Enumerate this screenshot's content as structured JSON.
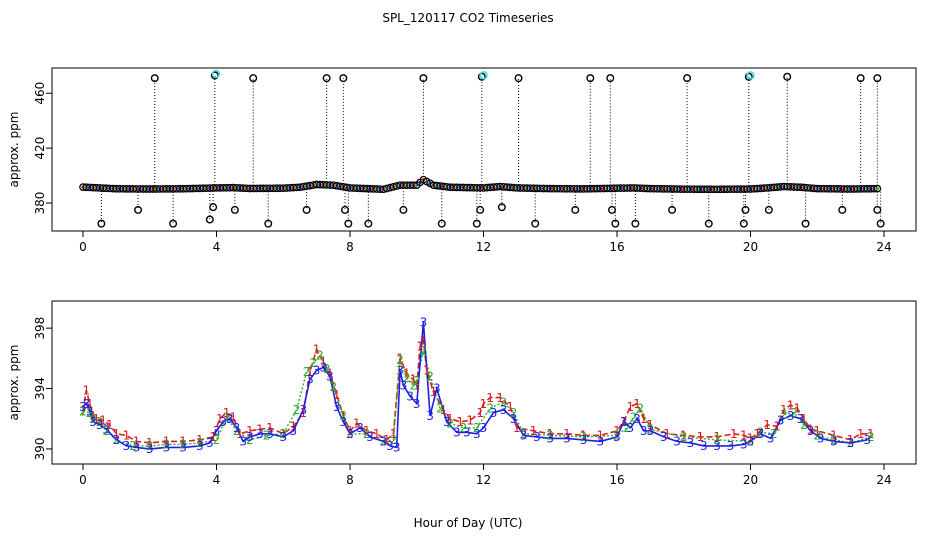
{
  "title": "SPL_120117  CO2 Timeseries",
  "xlabel": "Hour of Day (UTC)",
  "colors": {
    "series1": "#e01b1b",
    "series2": "#22b022",
    "series3": "#1e1ee6",
    "flag": "#40d8e0",
    "line1": "#e01b1b",
    "line3": "#1e1ee6"
  },
  "chart_data": [
    {
      "type": "scatter",
      "xlim": [
        0,
        24
      ],
      "ylim": [
        364,
        474
      ],
      "ylabel": "approx. ppm",
      "xticks": [
        0,
        4,
        8,
        12,
        16,
        20,
        24
      ],
      "yticks": [
        380,
        420,
        460
      ],
      "grid": false,
      "baseline": [
        [
          0.0,
          391.6
        ],
        [
          0.5,
          391.0
        ],
        [
          1.0,
          390.4
        ],
        [
          2.0,
          390.2
        ],
        [
          3.0,
          390.4
        ],
        [
          4.0,
          391.0
        ],
        [
          4.5,
          391.2
        ],
        [
          5.0,
          390.6
        ],
        [
          6.0,
          390.8
        ],
        [
          6.5,
          391.5
        ],
        [
          7.0,
          393.5
        ],
        [
          7.5,
          393.0
        ],
        [
          8.0,
          391.0
        ],
        [
          9.0,
          390.0
        ],
        [
          9.5,
          393.0
        ],
        [
          10.0,
          393.0
        ],
        [
          10.2,
          397.0
        ],
        [
          10.5,
          393.0
        ],
        [
          11.0,
          391.5
        ],
        [
          12.0,
          391.0
        ],
        [
          12.5,
          392.0
        ],
        [
          13.0,
          391.0
        ],
        [
          14.0,
          390.5
        ],
        [
          15.0,
          390.3
        ],
        [
          16.0,
          390.8
        ],
        [
          16.5,
          391.0
        ],
        [
          17.0,
          390.5
        ],
        [
          18.0,
          390.1
        ],
        [
          19.0,
          390.0
        ],
        [
          20.0,
          390.2
        ],
        [
          20.5,
          391.0
        ],
        [
          21.0,
          392.0
        ],
        [
          21.5,
          391.5
        ],
        [
          22.0,
          390.5
        ],
        [
          23.0,
          390.2
        ],
        [
          23.8,
          390.5
        ]
      ],
      "spikes_high": [
        [
          2.15,
          471
        ],
        [
          3.95,
          473
        ],
        [
          5.1,
          471
        ],
        [
          7.3,
          471
        ],
        [
          7.8,
          471
        ],
        [
          10.2,
          471
        ],
        [
          11.95,
          472
        ],
        [
          13.05,
          471
        ],
        [
          15.2,
          471
        ],
        [
          15.8,
          471
        ],
        [
          18.1,
          471
        ],
        [
          19.95,
          472
        ],
        [
          21.1,
          472
        ],
        [
          23.3,
          471
        ],
        [
          23.8,
          471
        ]
      ],
      "spikes_low": [
        [
          0.55,
          365
        ],
        [
          1.65,
          375
        ],
        [
          2.7,
          365
        ],
        [
          3.8,
          368
        ],
        [
          3.9,
          377
        ],
        [
          4.55,
          375
        ],
        [
          5.55,
          365
        ],
        [
          6.7,
          375
        ],
        [
          7.85,
          375
        ],
        [
          7.95,
          365
        ],
        [
          8.55,
          365
        ],
        [
          9.6,
          375
        ],
        [
          10.75,
          365
        ],
        [
          11.8,
          365
        ],
        [
          11.9,
          375
        ],
        [
          12.55,
          377
        ],
        [
          13.55,
          365
        ],
        [
          14.75,
          375
        ],
        [
          15.85,
          375
        ],
        [
          15.95,
          365
        ],
        [
          16.55,
          365
        ],
        [
          17.65,
          375
        ],
        [
          18.75,
          365
        ],
        [
          19.8,
          365
        ],
        [
          19.85,
          375
        ],
        [
          20.55,
          375
        ],
        [
          21.65,
          365
        ],
        [
          22.75,
          375
        ],
        [
          23.8,
          375
        ],
        [
          23.9,
          365
        ]
      ],
      "flagged_points": [
        [
          3.98,
          474
        ],
        [
          12.0,
          473
        ],
        [
          20.0,
          473
        ]
      ]
    },
    {
      "type": "line",
      "xlim": [
        0,
        24
      ],
      "ylim": [
        389.4,
        399.4
      ],
      "ylabel": "approx. ppm",
      "xticks": [
        0,
        4,
        8,
        12,
        16,
        20,
        24
      ],
      "yticks": [
        390,
        394,
        398
      ],
      "grid": false,
      "series": [
        {
          "marker": "1",
          "x": [
            0.0,
            0.1,
            0.2,
            0.3,
            0.4,
            0.6,
            0.8,
            1.0,
            1.3,
            1.6,
            2.0,
            2.5,
            3.0,
            3.5,
            3.9,
            4.1,
            4.3,
            4.5,
            4.7,
            5.0,
            5.3,
            5.6,
            6.0,
            6.3,
            6.6,
            6.8,
            7.0,
            7.2,
            7.4,
            7.6,
            7.8,
            8.0,
            8.2,
            8.5,
            8.8,
            9.1,
            9.3,
            9.5,
            9.7,
            9.9,
            10.0,
            10.1,
            10.2,
            10.3,
            10.5,
            10.8,
            11.0,
            11.3,
            11.6,
            11.9,
            12.0,
            12.2,
            12.5,
            12.8,
            13.0,
            13.5,
            14.0,
            14.5,
            15.0,
            15.5,
            16.0,
            16.2,
            16.4,
            16.6,
            16.8,
            17.0,
            17.5,
            18.0,
            18.5,
            19.0,
            19.5,
            19.8,
            20.0,
            20.2,
            20.5,
            20.8,
            21.0,
            21.2,
            21.4,
            21.6,
            21.8,
            22.0,
            22.5,
            23.0,
            23.3,
            23.6
          ],
          "y": [
            392.5,
            393.9,
            393.0,
            392.2,
            392.0,
            391.9,
            391.6,
            391.0,
            390.9,
            390.5,
            390.4,
            390.5,
            390.5,
            390.6,
            390.8,
            392.0,
            392.4,
            392.1,
            391.0,
            391.2,
            391.3,
            391.4,
            391.0,
            391.5,
            392.4,
            395.1,
            396.6,
            395.8,
            395.0,
            393.6,
            392.2,
            391.2,
            391.7,
            391.2,
            391.0,
            390.6,
            391.0,
            396.0,
            395.0,
            394.6,
            394.2,
            396.8,
            397.2,
            395.2,
            393.8,
            392.6,
            392.0,
            391.8,
            391.9,
            392.4,
            393.0,
            393.4,
            393.4,
            392.8,
            391.4,
            391.2,
            391.0,
            391.0,
            390.9,
            390.9,
            391.2,
            391.8,
            392.8,
            393.0,
            392.0,
            391.6,
            391.0,
            390.9,
            390.8,
            390.8,
            391.0,
            390.9,
            390.7,
            391.0,
            391.6,
            391.5,
            392.6,
            392.9,
            392.7,
            392.0,
            391.3,
            391.2,
            390.9,
            390.6,
            391.0,
            391.0
          ]
        },
        {
          "marker": "2",
          "x": [
            0.0,
            0.2,
            0.3,
            0.5,
            0.7,
            1.0,
            1.5,
            2.0,
            2.5,
            3.0,
            3.5,
            4.0,
            4.3,
            4.6,
            5.0,
            5.5,
            6.0,
            6.4,
            6.7,
            6.9,
            7.1,
            7.3,
            7.5,
            7.8,
            8.0,
            8.5,
            9.0,
            9.3,
            9.5,
            9.7,
            9.9,
            10.0,
            10.2,
            10.4,
            10.7,
            11.0,
            11.4,
            11.8,
            12.2,
            12.6,
            12.9,
            13.2,
            14.0,
            15.0,
            16.0,
            16.3,
            16.5,
            16.7,
            17.0,
            18.0,
            19.0,
            20.0,
            20.3,
            20.7,
            21.0,
            21.3,
            21.6,
            22.0,
            22.5,
            23.0,
            23.6
          ],
          "y": [
            392.5,
            392.4,
            392.0,
            391.8,
            391.2,
            390.6,
            390.2,
            390.2,
            390.3,
            390.3,
            390.4,
            390.6,
            392.1,
            391.2,
            390.6,
            390.9,
            391.0,
            392.6,
            395.1,
            395.7,
            396.2,
            395.3,
            394.1,
            392.2,
            391.0,
            391.0,
            390.5,
            390.6,
            395.9,
            394.7,
            394.2,
            394.5,
            396.5,
            394.8,
            392.7,
            391.7,
            391.4,
            391.4,
            392.7,
            393.1,
            392.4,
            391.0,
            390.9,
            390.8,
            390.9,
            391.4,
            392.1,
            392.7,
            391.3,
            390.8,
            390.6,
            390.5,
            391.1,
            391.0,
            392.3,
            392.4,
            391.6,
            390.9,
            390.6,
            390.4,
            390.8
          ]
        },
        {
          "marker": "3",
          "x": [
            0.0,
            0.1,
            0.2,
            0.3,
            0.5,
            0.7,
            1.0,
            1.3,
            1.6,
            2.0,
            2.5,
            3.0,
            3.5,
            3.8,
            4.0,
            4.2,
            4.4,
            4.6,
            4.8,
            5.0,
            5.3,
            5.6,
            6.0,
            6.3,
            6.6,
            6.8,
            7.0,
            7.2,
            7.4,
            7.6,
            7.8,
            8.0,
            8.3,
            8.6,
            9.0,
            9.2,
            9.4,
            9.5,
            9.6,
            9.8,
            10.0,
            10.2,
            10.4,
            10.6,
            10.9,
            11.2,
            11.5,
            11.8,
            12.0,
            12.3,
            12.6,
            12.9,
            13.2,
            13.6,
            14.0,
            14.5,
            15.0,
            15.5,
            16.0,
            16.2,
            16.4,
            16.6,
            16.8,
            17.0,
            17.4,
            17.8,
            18.2,
            18.6,
            19.0,
            19.4,
            19.8,
            20.0,
            20.3,
            20.6,
            20.9,
            21.2,
            21.5,
            21.8,
            22.1,
            22.5,
            23.0,
            23.5
          ],
          "y": [
            392.8,
            393.0,
            392.5,
            391.8,
            391.6,
            391.3,
            390.6,
            390.2,
            390.1,
            390.0,
            390.1,
            390.1,
            390.2,
            390.4,
            391.2,
            391.8,
            392.0,
            391.4,
            390.5,
            390.8,
            391.0,
            391.0,
            390.8,
            391.2,
            392.6,
            394.6,
            395.2,
            395.4,
            394.8,
            392.8,
            391.8,
            391.0,
            391.4,
            390.8,
            390.5,
            390.2,
            390.1,
            395.2,
            394.2,
            393.5,
            393.0,
            398.4,
            392.2,
            394.0,
            391.8,
            391.1,
            391.1,
            391.0,
            391.4,
            392.4,
            392.6,
            392.0,
            390.9,
            390.8,
            390.7,
            390.7,
            390.6,
            390.5,
            390.8,
            391.8,
            391.4,
            392.0,
            391.2,
            391.2,
            390.8,
            390.5,
            390.4,
            390.2,
            390.2,
            390.2,
            390.3,
            390.5,
            391.0,
            390.7,
            391.9,
            392.2,
            392.0,
            391.2,
            390.7,
            390.5,
            390.4,
            390.6
          ]
        }
      ]
    }
  ]
}
